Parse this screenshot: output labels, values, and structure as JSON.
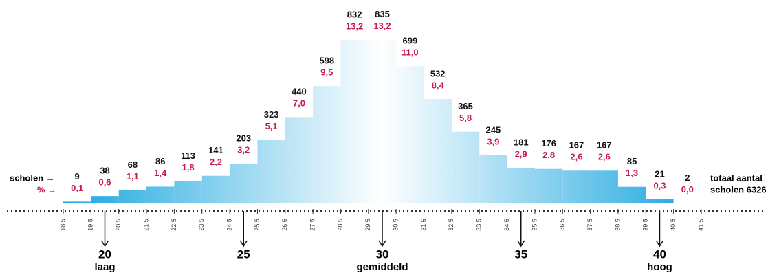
{
  "chart_data": {
    "type": "histogram",
    "bins": [
      18.5,
      19.5,
      20.5,
      21.5,
      22.5,
      23.5,
      24.5,
      25.5,
      26.5,
      27.5,
      28.5,
      29.5,
      30.5,
      31.5,
      32.5,
      33.5,
      34.5,
      35.5,
      36.5,
      37.5,
      38.5,
      39.5,
      40.5,
      41.5
    ],
    "series": [
      {
        "name": "scholen →",
        "color": "#111111",
        "values": [
          9,
          38,
          68,
          86,
          113,
          141,
          203,
          323,
          440,
          598,
          832,
          835,
          699,
          532,
          365,
          245,
          181,
          176,
          167,
          167,
          85,
          21,
          2
        ]
      },
      {
        "name": "% →",
        "color": "#c8194b",
        "values": [
          0.1,
          0.6,
          1.1,
          1.4,
          1.8,
          2.2,
          3.2,
          5.1,
          7.0,
          9.5,
          13.2,
          13.2,
          11.0,
          8.4,
          5.8,
          3.9,
          2.9,
          2.8,
          2.6,
          2.6,
          1.3,
          0.3,
          0.0
        ],
        "value_labels": [
          "0,1",
          "0,6",
          "1,1",
          "1,4",
          "1,8",
          "2,2",
          "3,2",
          "5,1",
          "7,0",
          "9,5",
          "13,2",
          "13,2",
          "11,0",
          "8,4",
          "5,8",
          "3,9",
          "2,9",
          "2,8",
          "2,6",
          "2,6",
          "1,3",
          "0,3",
          "0,0"
        ]
      }
    ],
    "bar_color": "#1aa6e0",
    "xlim": [
      18.5,
      41.5
    ],
    "ylim": [
      0,
      840
    ],
    "xticks": [
      {
        "value": 18.5,
        "label": "18,5"
      },
      {
        "value": 19.5,
        "label": "19,5"
      },
      {
        "value": 20.5,
        "label": "20,5"
      },
      {
        "value": 21.5,
        "label": "21,5"
      },
      {
        "value": 22.5,
        "label": "22,5"
      },
      {
        "value": 23.5,
        "label": "23,5"
      },
      {
        "value": 24.5,
        "label": "24,5"
      },
      {
        "value": 25.5,
        "label": "25,5"
      },
      {
        "value": 26.5,
        "label": "26,5"
      },
      {
        "value": 27.5,
        "label": "27,5"
      },
      {
        "value": 28.5,
        "label": "28,5"
      },
      {
        "value": 29.5,
        "label": "29,5"
      },
      {
        "value": 30.5,
        "label": "30,5"
      },
      {
        "value": 31.5,
        "label": "31,5"
      },
      {
        "value": 32.5,
        "label": "32,5"
      },
      {
        "value": 33.5,
        "label": "33,5"
      },
      {
        "value": 34.5,
        "label": "34,5"
      },
      {
        "value": 35.5,
        "label": "35,5"
      },
      {
        "value": 36.5,
        "label": "36,5"
      },
      {
        "value": 37.5,
        "label": "37,5"
      },
      {
        "value": 38.5,
        "label": "38,5"
      },
      {
        "value": 39.5,
        "label": "39,5"
      },
      {
        "value": 40.5,
        "label": "40,5"
      },
      {
        "value": 41.5,
        "label": "41,5"
      }
    ],
    "markers": [
      {
        "value": 20,
        "label": "20",
        "sublabel": "laag"
      },
      {
        "value": 25,
        "label": "25"
      },
      {
        "value": 30,
        "label": "30",
        "sublabel": "gemiddeld"
      },
      {
        "value": 35,
        "label": "35"
      },
      {
        "value": 40,
        "label": "40",
        "sublabel": "hoog"
      }
    ],
    "annotation": [
      "totaal aantal",
      "scholen 6326"
    ]
  }
}
